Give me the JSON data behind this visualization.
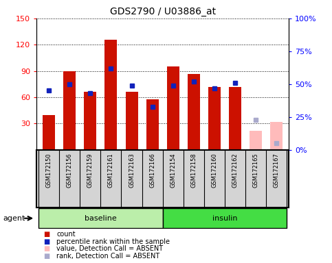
{
  "title": "GDS2790 / U03886_at",
  "samples": [
    "GSM172150",
    "GSM172156",
    "GSM172159",
    "GSM172161",
    "GSM172163",
    "GSM172166",
    "GSM172154",
    "GSM172158",
    "GSM172160",
    "GSM172162",
    "GSM172165",
    "GSM172167"
  ],
  "red_bars": [
    40,
    90,
    66,
    126,
    66,
    58,
    95,
    87,
    72,
    72,
    null,
    null
  ],
  "blue_squares_pct": [
    45,
    50,
    43,
    62,
    49,
    33,
    49,
    52,
    47,
    51,
    null,
    null
  ],
  "pink_bars": [
    null,
    null,
    null,
    null,
    null,
    null,
    null,
    null,
    null,
    null,
    22,
    32
  ],
  "lavender_squares_pct": [
    null,
    null,
    null,
    null,
    null,
    null,
    null,
    null,
    null,
    null,
    23,
    5
  ],
  "ylim_left": [
    0,
    150
  ],
  "ylim_right": [
    0,
    100
  ],
  "yticks_left": [
    30,
    60,
    90,
    120,
    150
  ],
  "ytick_labels_left": [
    "30",
    "60",
    "90",
    "120",
    "150"
  ],
  "yticks_right": [
    0,
    25,
    50,
    75,
    100
  ],
  "ytick_labels_right": [
    "0%",
    "25%",
    "50%",
    "75%",
    "100%"
  ],
  "bar_color": "#cc1100",
  "blue_color": "#1122bb",
  "pink_color": "#ffbbbb",
  "lavender_color": "#aaaacc",
  "baseline_color": "#bbeeaa",
  "insulin_color": "#44dd44",
  "agent_label": "agent",
  "baseline_label": "baseline",
  "insulin_label": "insulin",
  "legend_items": [
    {
      "label": "count",
      "color": "#cc1100"
    },
    {
      "label": "percentile rank within the sample",
      "color": "#1122bb"
    },
    {
      "label": "value, Detection Call = ABSENT",
      "color": "#ffbbbb"
    },
    {
      "label": "rank, Detection Call = ABSENT",
      "color": "#aaaacc"
    }
  ]
}
